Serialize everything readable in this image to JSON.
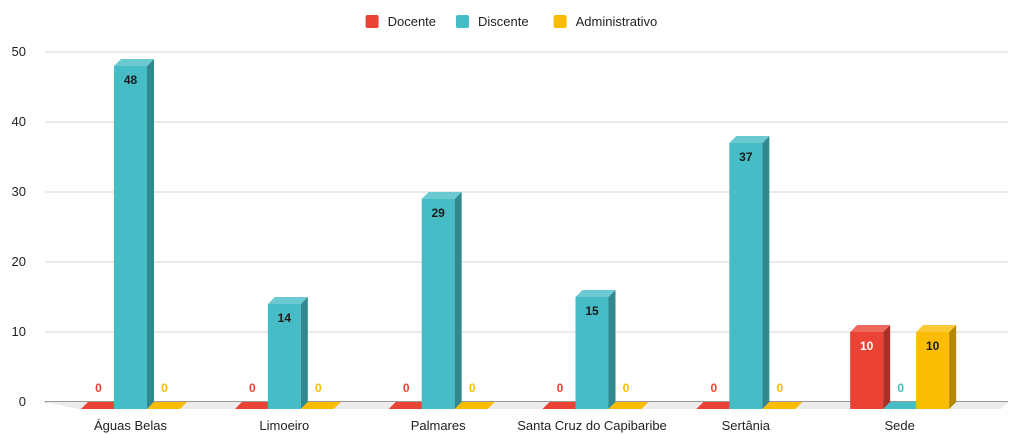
{
  "chart_data": {
    "type": "bar",
    "categories": [
      "Águas Belas",
      "Limoeiro",
      "Palmares",
      "Santa Cruz do Capibaribe",
      "Sertânia",
      "Sede"
    ],
    "series": [
      {
        "name": "Docente",
        "color": "#EA4335",
        "values": [
          0,
          0,
          0,
          0,
          0,
          10
        ]
      },
      {
        "name": "Discente",
        "color": "#46BDC6",
        "values": [
          48,
          14,
          29,
          15,
          37,
          0
        ]
      },
      {
        "name": "Administrativo",
        "color": "#FBBC04",
        "values": [
          0,
          0,
          0,
          0,
          0,
          10
        ]
      }
    ],
    "yticks": [
      0,
      10,
      20,
      30,
      40,
      50
    ],
    "ylim": [
      0,
      50
    ],
    "grid": true,
    "legend_position": "top-center",
    "style": "3d-bars"
  }
}
